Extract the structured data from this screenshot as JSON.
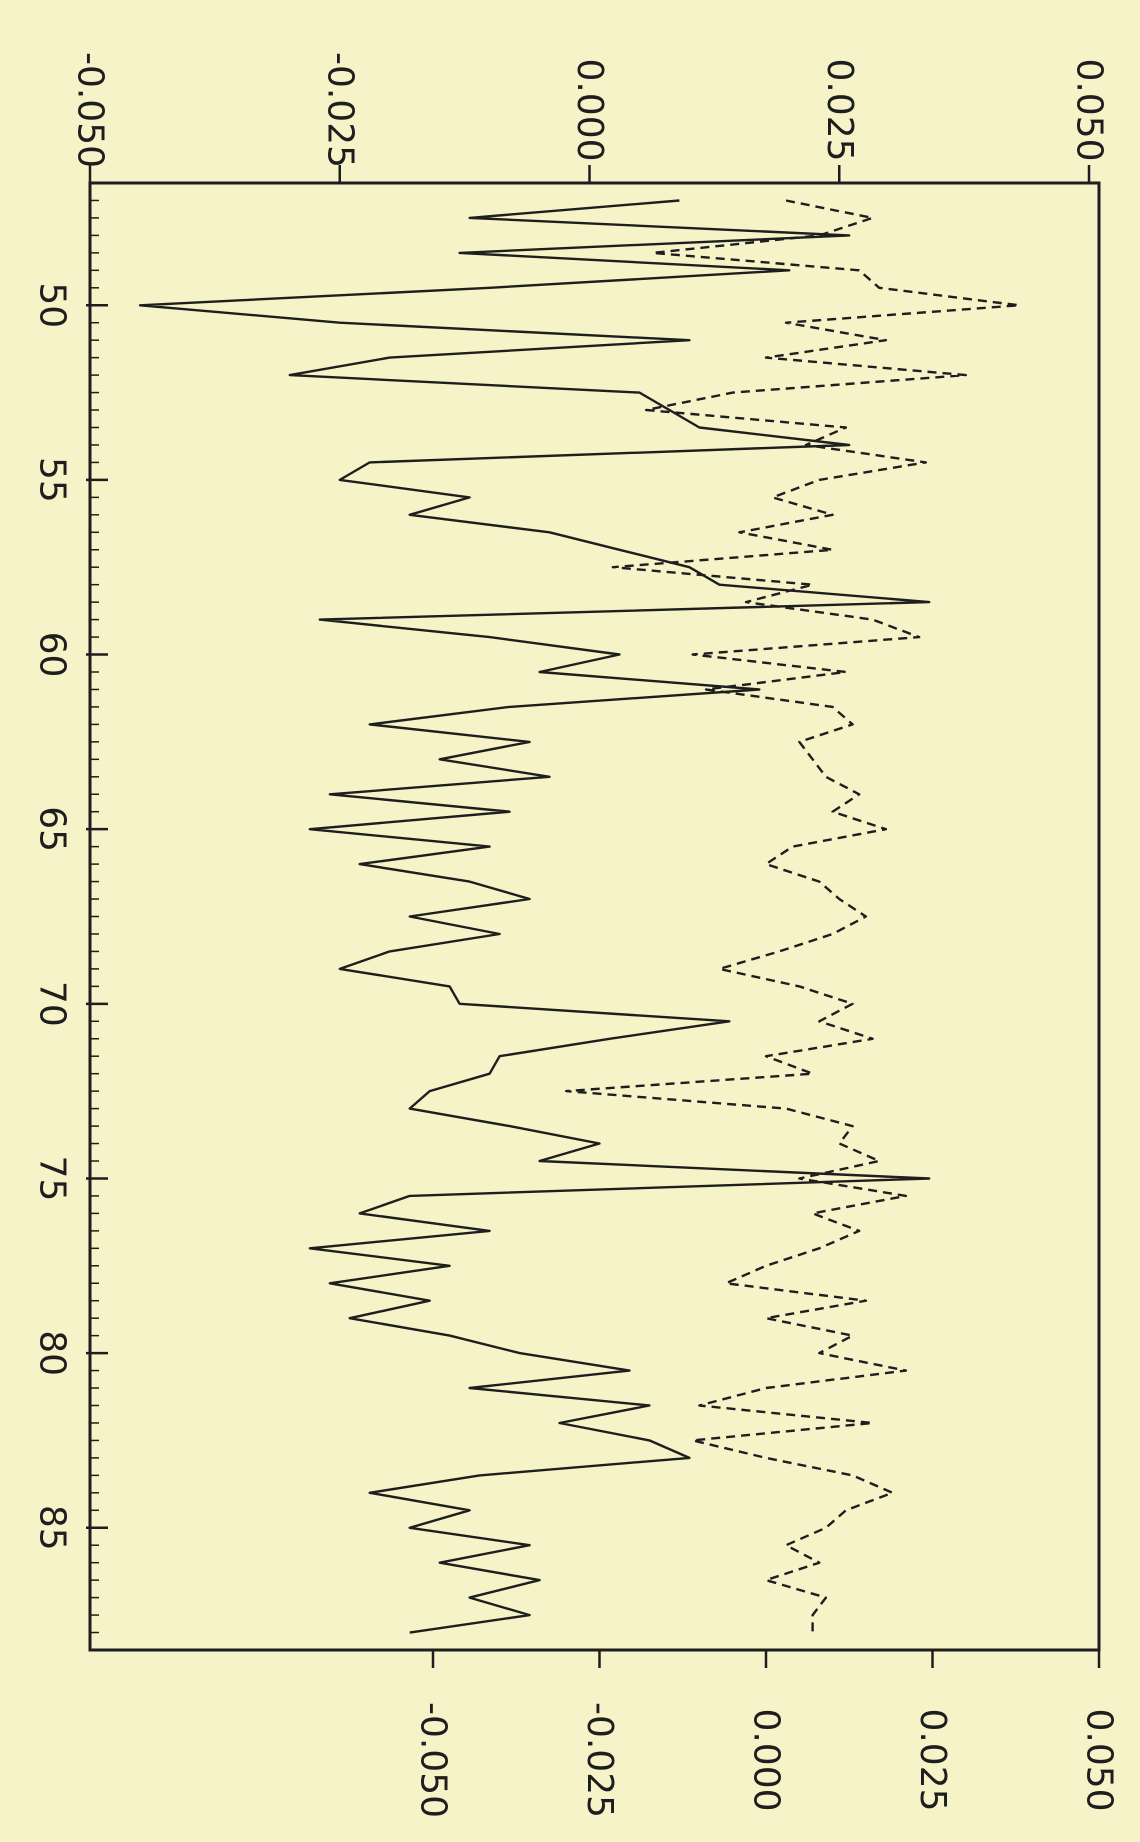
{
  "chart_data": {
    "type": "line",
    "orientation": "rotated-90",
    "background": "#f7f3c9",
    "ink": "#1e1e1e",
    "grid": false,
    "legend": false,
    "x_ticks": [
      "50",
      "55",
      "60",
      "65",
      "70",
      "75",
      "80",
      "85"
    ],
    "x_tick_values": [
      50,
      55,
      60,
      65,
      70,
      75,
      80,
      85
    ],
    "xlim": [
      46.5,
      88.5
    ],
    "top_axis": {
      "ticks": [
        "-0.050",
        "-0.025",
        "0.000",
        "0.025",
        "0.050"
      ],
      "tick_values": [
        -0.05,
        -0.025,
        0.0,
        0.025,
        0.05
      ],
      "range": [
        -0.05,
        0.051
      ]
    },
    "bottom_axis": {
      "ticks": [
        "-0.050",
        "-0.025",
        "0.000",
        "0.025",
        "0.050"
      ],
      "tick_values": [
        -0.05,
        -0.025,
        0.0,
        0.025,
        0.05
      ],
      "range": [
        -0.1015,
        0.05
      ]
    },
    "series": [
      {
        "axis": "top_axis",
        "style": "solid",
        "x": [
          47,
          47.5,
          48,
          48.5,
          49,
          49.5,
          50,
          50.5,
          51,
          51.5,
          52,
          52.5,
          53,
          53.5,
          54,
          54.5,
          55,
          55.5,
          56,
          56.5,
          57,
          57.5,
          58,
          58.5,
          59,
          59.5,
          60,
          60.5,
          61,
          61.5,
          62,
          62.5,
          63,
          63.5,
          64,
          64.5,
          65,
          65.5,
          66,
          66.5,
          67,
          67.5,
          68,
          68.5,
          69,
          69.5,
          70,
          70.5,
          71,
          71.5,
          72,
          72.5,
          73,
          73.5,
          74,
          74.5,
          75,
          75.5,
          76,
          76.5,
          77,
          77.5,
          78,
          78.5,
          79,
          79.5,
          80,
          80.5,
          81,
          81.5,
          82,
          82.5,
          83,
          83.5,
          84,
          84.5,
          85,
          85.5,
          86,
          86.5,
          87,
          87.5,
          88
        ],
        "y": [
          0.009,
          -0.012,
          0.026,
          -0.013,
          0.02,
          -0.01,
          -0.045,
          -0.025,
          0.01,
          -0.02,
          -0.03,
          0.005,
          0.008,
          0.011,
          0.026,
          -0.022,
          -0.025,
          -0.012,
          -0.018,
          -0.004,
          0.003,
          0.01,
          0.013,
          0.034,
          -0.027,
          -0.01,
          0.003,
          -0.005,
          0.017,
          -0.008,
          -0.022,
          -0.006,
          -0.015,
          -0.004,
          -0.026,
          -0.008,
          -0.028,
          -0.01,
          -0.023,
          -0.012,
          -0.006,
          -0.018,
          -0.009,
          -0.02,
          -0.025,
          -0.014,
          -0.013,
          0.014,
          0.002,
          -0.009,
          -0.01,
          -0.016,
          -0.018,
          -0.008,
          0.001,
          -0.005,
          0.034,
          -0.018,
          -0.023,
          -0.01,
          -0.028,
          -0.014,
          -0.026,
          -0.016,
          -0.024,
          -0.014,
          -0.007,
          0.004,
          -0.012,
          0.006,
          -0.003,
          0.006,
          0.01,
          -0.011,
          -0.022,
          -0.012,
          -0.018,
          -0.006,
          -0.015,
          -0.005,
          -0.012,
          -0.006,
          -0.018
        ]
      },
      {
        "axis": "bottom_axis",
        "style": "dashed",
        "x": [
          47,
          47.5,
          48,
          48.5,
          49,
          49.5,
          50,
          50.5,
          51,
          51.5,
          52,
          52.5,
          53,
          53.5,
          54,
          54.5,
          55,
          55.5,
          56,
          56.5,
          57,
          57.5,
          58,
          58.5,
          59,
          59.5,
          60,
          60.5,
          61,
          61.5,
          62,
          62.5,
          63,
          63.5,
          64,
          64.5,
          65,
          65.5,
          66,
          66.5,
          67,
          67.5,
          68,
          68.5,
          69,
          69.5,
          70,
          70.5,
          71,
          71.5,
          72,
          72.5,
          73,
          73.5,
          74,
          74.5,
          75,
          75.5,
          76,
          76.5,
          77,
          77.5,
          78,
          78.5,
          79,
          79.5,
          80,
          80.5,
          81,
          81.5,
          82,
          82.5,
          83,
          83.5,
          84,
          84.5,
          85,
          85.5,
          86,
          86.5,
          87,
          87.5,
          88
        ],
        "y": [
          0.003,
          0.016,
          0.008,
          -0.017,
          0.014,
          0.017,
          0.038,
          0.003,
          0.018,
          0.0,
          0.03,
          -0.005,
          -0.018,
          0.012,
          0.006,
          0.024,
          0.008,
          0.001,
          0.01,
          -0.004,
          0.01,
          -0.023,
          0.007,
          -0.003,
          0.016,
          0.023,
          -0.011,
          0.012,
          -0.009,
          0.01,
          0.013,
          0.005,
          0.007,
          0.009,
          0.014,
          0.01,
          0.018,
          0.004,
          0.0,
          0.008,
          0.011,
          0.015,
          0.01,
          0.002,
          -0.007,
          0.005,
          0.013,
          0.008,
          0.016,
          0.0,
          0.007,
          -0.03,
          0.003,
          0.013,
          0.011,
          0.017,
          0.005,
          0.021,
          0.007,
          0.014,
          0.008,
          0.0,
          -0.006,
          0.015,
          0.0,
          0.013,
          0.008,
          0.021,
          0.0,
          -0.01,
          0.016,
          -0.011,
          0.0,
          0.013,
          0.019,
          0.012,
          0.009,
          0.003,
          0.008,
          0.0,
          0.009,
          0.007,
          0.007
        ]
      }
    ]
  }
}
